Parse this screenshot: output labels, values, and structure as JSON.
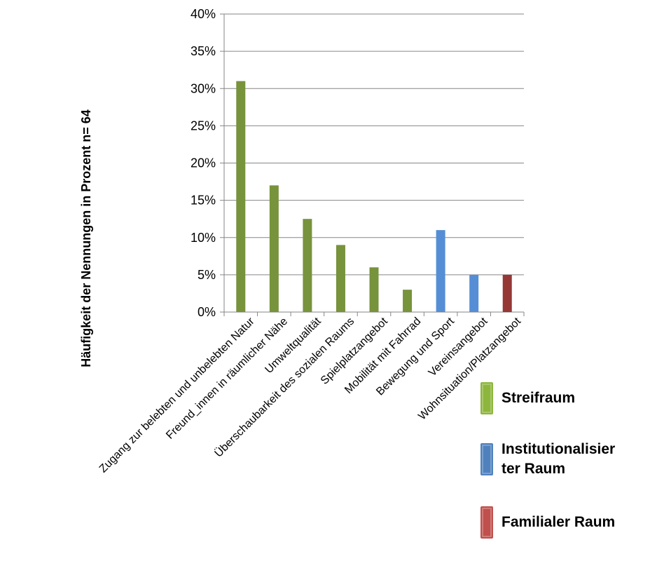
{
  "chart_data": {
    "type": "bar",
    "ylabel": "Häufigkeit der Nennungen in Prozent   n= 64",
    "xlabel": "",
    "ylim": [
      0,
      40
    ],
    "yticks": [
      "0%",
      "5%",
      "10%",
      "15%",
      "20%",
      "25%",
      "30%",
      "35%",
      "40%"
    ],
    "grid": true,
    "legend_position": "right",
    "categories": [
      "Zugang zur belebten und unbelebten Natur",
      "Freund_innen in räumlicher Nähe",
      "Umweltqualität",
      "Überschaubarkeit des sozialen Raums",
      "Spielplatzangebot",
      "Mobilität mit Fahrrad",
      "Bewegung und Sport",
      "Vereinsangebot",
      "Wohnsituation/Platzangebot"
    ],
    "values": [
      31,
      17,
      12.5,
      9,
      6,
      3,
      11,
      5,
      5
    ],
    "bar_groups": [
      0,
      0,
      0,
      0,
      0,
      0,
      1,
      1,
      2
    ],
    "groups": [
      {
        "name": "Streifraum",
        "color": "#77933c"
      },
      {
        "name": "Institutionalisier\nter Raum",
        "color": "#558ed5"
      },
      {
        "name": "Familialer Raum",
        "color": "#953735"
      }
    ]
  },
  "legend": {
    "items": [
      {
        "label": "Streifraum",
        "color": "#8db63c"
      },
      {
        "label": "Institutionalisier\nter Raum",
        "color": "#4f81bd"
      },
      {
        "label": "Familialer Raum",
        "color": "#c0504d"
      }
    ]
  }
}
